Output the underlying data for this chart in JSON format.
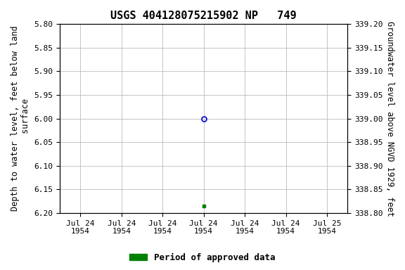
{
  "title": "USGS 404128075215902 NP   749",
  "ylabel_left": "Depth to water level, feet below land\n surface",
  "ylabel_right": "Groundwater level above NGVD 1929, feet",
  "ylim_left_top": 5.8,
  "ylim_left_bottom": 6.2,
  "ylim_right_bottom": 338.8,
  "ylim_right_top": 339.2,
  "yticks_left": [
    5.8,
    5.85,
    5.9,
    5.95,
    6.0,
    6.05,
    6.1,
    6.15,
    6.2
  ],
  "yticks_right": [
    338.8,
    338.85,
    338.9,
    338.95,
    339.0,
    339.05,
    339.1,
    339.15,
    339.2
  ],
  "point_blue_x": 3.5,
  "point_blue_y": 6.0,
  "point_green_x": 3.5,
  "point_green_y": 6.185,
  "xtick_positions": [
    0.5,
    1.5,
    2.5,
    3.5,
    4.5,
    5.5,
    6.5
  ],
  "xtick_labels": [
    "Jul 24\n1954",
    "Jul 24\n1954",
    "Jul 24\n1954",
    "Jul 24\n1954",
    "Jul 24\n1954",
    "Jul 24\n1954",
    "Jul 25\n1954"
  ],
  "xlim": [
    0,
    7
  ],
  "grid_color": "#bbbbbb",
  "bg_color": "#ffffff",
  "title_fontsize": 11,
  "axis_label_fontsize": 8.5,
  "tick_fontsize": 8,
  "legend_label": "Period of approved data",
  "legend_color": "#008000",
  "blue_marker_color": "#0000cc",
  "green_marker_color": "#008000"
}
